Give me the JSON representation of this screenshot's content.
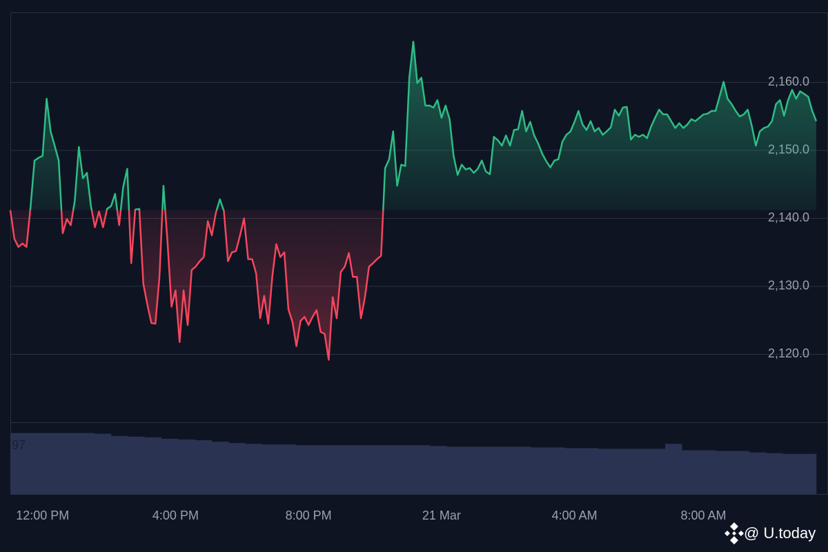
{
  "chart_data": [
    {
      "type": "line",
      "categories": [
        null,
        null,
        null,
        null,
        null,
        null,
        null,
        null,
        "12:00 PM",
        null,
        null,
        null,
        null,
        null,
        null,
        null,
        null,
        null,
        null,
        null,
        null,
        null,
        null,
        null,
        null,
        null,
        null,
        null,
        null,
        null,
        null,
        null,
        null,
        null,
        null,
        null,
        null,
        null,
        null,
        null,
        null,
        "4:00 PM",
        null,
        null,
        null,
        null,
        null,
        null,
        null,
        null,
        null,
        null,
        null,
        null,
        null,
        null,
        null,
        null,
        null,
        null,
        null,
        null,
        null,
        null,
        null,
        null,
        null,
        null,
        null,
        null,
        null,
        null,
        null,
        null,
        "8:00 PM",
        null,
        null,
        null,
        null,
        null,
        null,
        null,
        null,
        null,
        null,
        null,
        null,
        null,
        null,
        null,
        null,
        null,
        null,
        null,
        null,
        null,
        null,
        null,
        null,
        null,
        null,
        null,
        null,
        null,
        null,
        null,
        null,
        "21 Mar",
        null,
        null,
        null,
        null,
        null,
        null,
        null,
        null,
        null,
        null,
        null,
        null,
        null,
        null,
        null,
        null,
        null,
        null,
        null,
        null,
        null,
        null,
        null,
        null,
        null,
        null,
        null,
        null,
        null,
        null,
        null,
        null,
        "4:00 AM",
        null,
        null,
        null,
        null,
        null,
        null,
        null,
        null,
        null,
        null,
        null,
        null,
        null,
        null,
        null,
        null,
        null,
        null,
        null,
        null,
        null,
        null,
        null,
        null,
        null,
        null,
        null,
        null,
        null,
        null,
        null,
        "8:00 AM",
        null,
        null,
        null,
        null,
        null,
        null,
        null,
        null,
        null,
        null,
        null,
        null,
        null,
        null,
        null,
        null,
        null,
        null,
        null,
        null,
        null,
        null,
        null,
        null,
        null,
        null,
        null,
        null
      ],
      "values": [
        2141.2,
        2137.0,
        2135.8,
        2136.3,
        2135.8,
        2141.6,
        2148.5,
        2148.9,
        2149.2,
        2157.6,
        2152.8,
        2150.7,
        2148.5,
        2137.8,
        2139.9,
        2139.0,
        2142.6,
        2150.5,
        2145.9,
        2146.7,
        2141.8,
        2138.7,
        2141.0,
        2138.7,
        2141.4,
        2141.8,
        2143.6,
        2139.0,
        2144.6,
        2147.3,
        2133.4,
        2141.3,
        2141.4,
        2130.4,
        2127.3,
        2124.6,
        2124.5,
        2131.4,
        2144.8,
        2136.5,
        2127.0,
        2129.4,
        2121.8,
        2129.4,
        2124.3,
        2132.4,
        2132.9,
        2133.7,
        2134.3,
        2139.6,
        2137.5,
        2140.8,
        2142.8,
        2141.1,
        2133.7,
        2135.0,
        2135.2,
        2137.5,
        2140.0,
        2134.0,
        2134.0,
        2131.9,
        2125.3,
        2128.6,
        2124.5,
        2131.4,
        2136.2,
        2134.3,
        2135.0,
        2126.6,
        2124.8,
        2121.2,
        2124.9,
        2125.5,
        2124.3,
        2125.5,
        2126.5,
        2123.3,
        2123.0,
        2119.2,
        2128.4,
        2125.3,
        2132.1,
        2132.9,
        2134.9,
        2131.4,
        2131.4,
        2125.3,
        2128.4,
        2132.9,
        2133.4,
        2134.0,
        2134.5,
        2147.4,
        2148.7,
        2152.8,
        2144.8,
        2147.9,
        2147.7,
        2160.7,
        2166.0,
        2159.9,
        2160.7,
        2156.6,
        2156.6,
        2156.3,
        2157.4,
        2154.8,
        2156.6,
        2154.6,
        2149.2,
        2146.4,
        2147.9,
        2147.2,
        2147.4,
        2146.7,
        2147.3,
        2148.5,
        2146.9,
        2146.5,
        2152.0,
        2151.5,
        2150.7,
        2152.2,
        2150.7,
        2153.0,
        2153.1,
        2155.8,
        2152.8,
        2154.2,
        2152.2,
        2151.0,
        2149.5,
        2148.4,
        2147.5,
        2148.5,
        2148.7,
        2151.3,
        2152.3,
        2152.8,
        2154.2,
        2155.8,
        2153.8,
        2153.0,
        2154.3,
        2152.8,
        2153.3,
        2152.3,
        2152.8,
        2153.4,
        2156.0,
        2155.1,
        2156.3,
        2156.4,
        2151.6,
        2152.3,
        2152.0,
        2152.3,
        2151.8,
        2153.5,
        2154.8,
        2156.0,
        2155.3,
        2155.3,
        2154.3,
        2153.3,
        2154.0,
        2153.3,
        2153.8,
        2154.6,
        2154.3,
        2154.8,
        2155.3,
        2155.4,
        2155.8,
        2155.8,
        2157.9,
        2160.1,
        2157.6,
        2156.8,
        2155.8,
        2155.0,
        2155.3,
        2156.0,
        2153.6,
        2150.7,
        2152.8,
        2153.3,
        2153.5,
        2154.3,
        2156.8,
        2157.4,
        2155.1,
        2157.4,
        2158.9,
        2157.6,
        2158.7,
        2158.3,
        2157.9,
        2155.8,
        2154.3
      ],
      "up_color": "#2ebd85",
      "down_color": "#f6465d",
      "ylim": [
        2110,
        2170.3
      ],
      "yticks": [
        {
          "value": 2120,
          "label": "2,120.0"
        },
        {
          "value": 2130,
          "label": "2,130.0"
        },
        {
          "value": 2140,
          "label": "2,140.0"
        },
        {
          "value": 2150,
          "label": "2,150.0"
        },
        {
          "value": 2160,
          "label": "2,160.0"
        }
      ],
      "grid": true
    },
    {
      "type": "bar",
      "values": [
        85,
        85,
        85,
        85,
        85,
        84,
        81,
        80,
        79,
        77,
        76,
        75,
        73,
        71,
        70,
        69,
        69,
        68,
        68,
        68,
        68,
        68,
        68,
        68,
        68,
        67,
        66,
        66,
        66,
        66,
        66,
        65,
        65,
        64,
        64,
        63,
        63,
        63,
        63,
        70,
        61,
        61,
        60,
        60,
        58,
        57,
        56,
        56
      ],
      "color": "#2b3353",
      "ylim": [
        0,
        100
      ],
      "annotation": "97"
    }
  ],
  "watermark": "@ U.today"
}
